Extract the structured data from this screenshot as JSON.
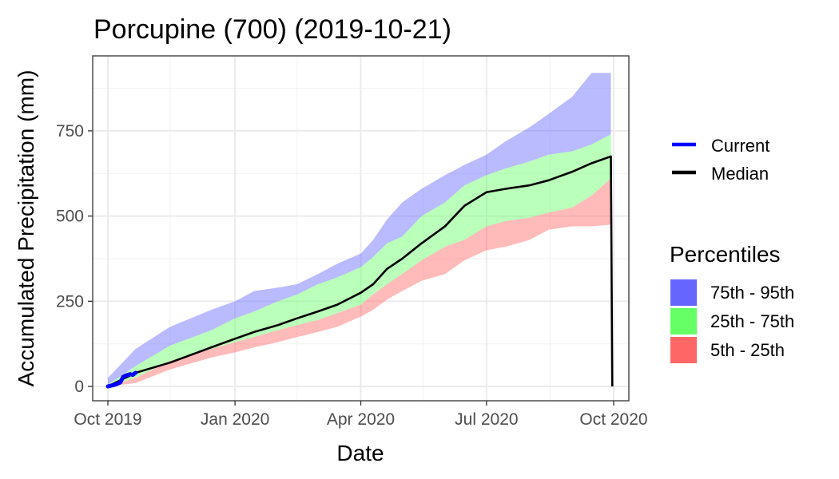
{
  "chart_data": {
    "type": "area",
    "title": "Porcupine (700) (2019-10-21)",
    "xlabel": "Date",
    "ylabel": "Accumulated Precipitation (mm)",
    "xlim": [
      "2019-09-20",
      "2020-10-12"
    ],
    "ylim": [
      -42,
      970
    ],
    "x_ticks": [
      {
        "date": "2019-10-01",
        "label": "Oct 2019"
      },
      {
        "date": "2020-01-01",
        "label": "Jan 2020"
      },
      {
        "date": "2020-04-01",
        "label": "Apr 2020"
      },
      {
        "date": "2020-07-01",
        "label": "Jul 2020"
      },
      {
        "date": "2020-10-01",
        "label": "Oct 2020"
      }
    ],
    "x_minor_ticks": [
      "2019-11-15",
      "2020-02-15",
      "2020-05-16",
      "2020-08-16"
    ],
    "y_ticks": [
      0,
      250,
      500,
      750
    ],
    "grid": true,
    "legend": {
      "lines_title": "",
      "lines": [
        {
          "name": "Current",
          "color": "#0000ff"
        },
        {
          "name": "Median",
          "color": "#000000"
        }
      ],
      "fill_title": "Percentiles",
      "fills": [
        {
          "name": "75th - 95th",
          "color": "#6666ff"
        },
        {
          "name": "25th - 75th",
          "color": "#66ff66"
        },
        {
          "name": "5th - 25th",
          "color": "#ff6666"
        }
      ],
      "position": "right"
    },
    "band_x": [
      "2019-10-01",
      "2019-10-21",
      "2019-11-15",
      "2019-12-15",
      "2020-01-01",
      "2020-01-15",
      "2020-02-01",
      "2020-02-15",
      "2020-03-01",
      "2020-03-15",
      "2020-04-01",
      "2020-04-10",
      "2020-04-20",
      "2020-05-01",
      "2020-05-15",
      "2020-06-01",
      "2020-06-15",
      "2020-07-01",
      "2020-07-15",
      "2020-08-01",
      "2020-08-15",
      "2020-09-01",
      "2020-09-15",
      "2020-09-29"
    ],
    "series": [
      {
        "name": "75th - 95th",
        "color": "#6666ff",
        "lower": [
          5,
          60,
          120,
          165,
          200,
          220,
          250,
          270,
          300,
          320,
          350,
          380,
          420,
          440,
          500,
          540,
          590,
          620,
          640,
          660,
          680,
          690,
          710,
          740
        ],
        "upper": [
          25,
          110,
          175,
          225,
          250,
          280,
          290,
          300,
          330,
          360,
          390,
          430,
          490,
          540,
          580,
          620,
          650,
          680,
          720,
          760,
          800,
          850,
          920,
          920
        ]
      },
      {
        "name": "25th - 75th",
        "color": "#66ff66",
        "lower": [
          0,
          25,
          75,
          110,
          130,
          145,
          165,
          180,
          195,
          215,
          240,
          270,
          300,
          330,
          370,
          410,
          430,
          470,
          485,
          495,
          510,
          525,
          560,
          610
        ],
        "upper": [
          5,
          60,
          120,
          165,
          200,
          220,
          250,
          270,
          300,
          320,
          350,
          380,
          420,
          440,
          500,
          540,
          590,
          620,
          640,
          660,
          680,
          690,
          710,
          740
        ]
      },
      {
        "name": "5th - 25th",
        "color": "#ff6666",
        "lower": [
          0,
          10,
          50,
          85,
          100,
          115,
          130,
          145,
          160,
          175,
          205,
          225,
          255,
          280,
          310,
          330,
          370,
          400,
          410,
          430,
          460,
          470,
          470,
          475
        ],
        "upper": [
          0,
          25,
          75,
          110,
          130,
          145,
          165,
          180,
          195,
          215,
          240,
          270,
          300,
          330,
          370,
          410,
          430,
          470,
          485,
          495,
          510,
          525,
          560,
          610
        ]
      }
    ],
    "median": {
      "name": "Median",
      "x": [
        "2019-10-01",
        "2019-10-21",
        "2019-11-15",
        "2019-12-15",
        "2020-01-01",
        "2020-01-15",
        "2020-02-01",
        "2020-02-15",
        "2020-03-01",
        "2020-03-15",
        "2020-04-01",
        "2020-04-10",
        "2020-04-20",
        "2020-05-01",
        "2020-05-15",
        "2020-06-01",
        "2020-06-15",
        "2020-07-01",
        "2020-07-15",
        "2020-08-01",
        "2020-08-15",
        "2020-09-01",
        "2020-09-15",
        "2020-09-29",
        "2020-09-30"
      ],
      "y": [
        0,
        40,
        70,
        115,
        140,
        160,
        180,
        200,
        220,
        240,
        275,
        300,
        345,
        375,
        420,
        470,
        530,
        570,
        580,
        590,
        605,
        630,
        655,
        675,
        0
      ]
    },
    "current": {
      "name": "Current",
      "x": [
        "2019-10-01",
        "2019-10-03",
        "2019-10-06",
        "2019-10-08",
        "2019-10-10",
        "2019-10-12",
        "2019-10-14",
        "2019-10-17",
        "2019-10-19",
        "2019-10-21"
      ],
      "y": [
        0,
        2,
        5,
        8,
        12,
        28,
        32,
        36,
        34,
        40
      ]
    }
  }
}
